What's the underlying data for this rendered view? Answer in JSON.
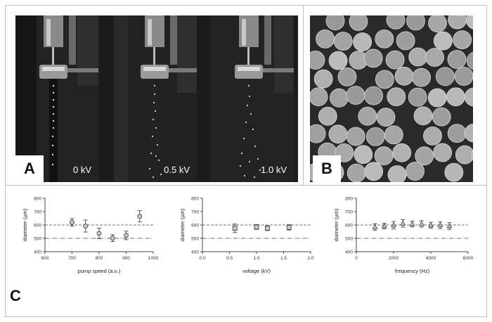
{
  "figure": {
    "panel_labels": {
      "a": "A",
      "b": "B",
      "c": "C"
    },
    "photos": [
      {
        "voltage_label": "0 kV"
      },
      {
        "voltage_label": "0.5 kV"
      },
      {
        "voltage_label": "1.0 kV"
      }
    ]
  },
  "chart_data": [
    {
      "type": "scatter",
      "xlabel": "pump speed (a.u.)",
      "ylabel": "diameter (µm)",
      "xlim": [
        600,
        1000
      ],
      "ylim": [
        400,
        800
      ],
      "xticks": [
        600,
        700,
        800,
        900,
        1000
      ],
      "yticks": [
        400,
        500,
        600,
        700,
        800
      ],
      "reference_lines": [
        600,
        500
      ],
      "marker": "circle",
      "points": [
        {
          "x": 700,
          "y": 620,
          "err": 28
        },
        {
          "x": 750,
          "y": 592,
          "err": 45
        },
        {
          "x": 800,
          "y": 537,
          "err": 40
        },
        {
          "x": 850,
          "y": 502,
          "err": 25
        },
        {
          "x": 900,
          "y": 522,
          "err": 32
        },
        {
          "x": 950,
          "y": 665,
          "err": 42
        }
      ]
    },
    {
      "type": "scatter",
      "xlabel": "voltage (kV)",
      "ylabel": "diameter (µm)",
      "xlim": [
        0,
        2
      ],
      "ylim": [
        400,
        800
      ],
      "xticks": [
        "0.0",
        "0.5",
        "1.0",
        "1.5",
        "2.0"
      ],
      "yticks": [
        400,
        500,
        600,
        700,
        800
      ],
      "reference_lines": [
        600,
        500
      ],
      "marker": "square",
      "points": [
        {
          "x": 0.6,
          "y": 575,
          "err": 32
        },
        {
          "x": 1.0,
          "y": 585,
          "err": 18
        },
        {
          "x": 1.2,
          "y": 576,
          "err": 18
        },
        {
          "x": 1.6,
          "y": 582,
          "err": 20
        }
      ]
    },
    {
      "type": "scatter",
      "xlabel": "frequency (Hz)",
      "ylabel": "diameter (µm)",
      "xlim": [
        0,
        6000
      ],
      "ylim": [
        400,
        800
      ],
      "xticks": [
        0,
        2000,
        4000,
        6000
      ],
      "yticks": [
        400,
        500,
        600,
        700,
        800
      ],
      "reference_lines": [
        600,
        500
      ],
      "marker": "triangle",
      "points": [
        {
          "x": 1000,
          "y": 585,
          "err": 25
        },
        {
          "x": 1500,
          "y": 592,
          "err": 20
        },
        {
          "x": 2000,
          "y": 598,
          "err": 28
        },
        {
          "x": 2500,
          "y": 612,
          "err": 28
        },
        {
          "x": 3000,
          "y": 607,
          "err": 22
        },
        {
          "x": 3500,
          "y": 608,
          "err": 24
        },
        {
          "x": 4000,
          "y": 598,
          "err": 22
        },
        {
          "x": 4500,
          "y": 598,
          "err": 25
        },
        {
          "x": 5000,
          "y": 592,
          "err": 25
        }
      ]
    }
  ]
}
